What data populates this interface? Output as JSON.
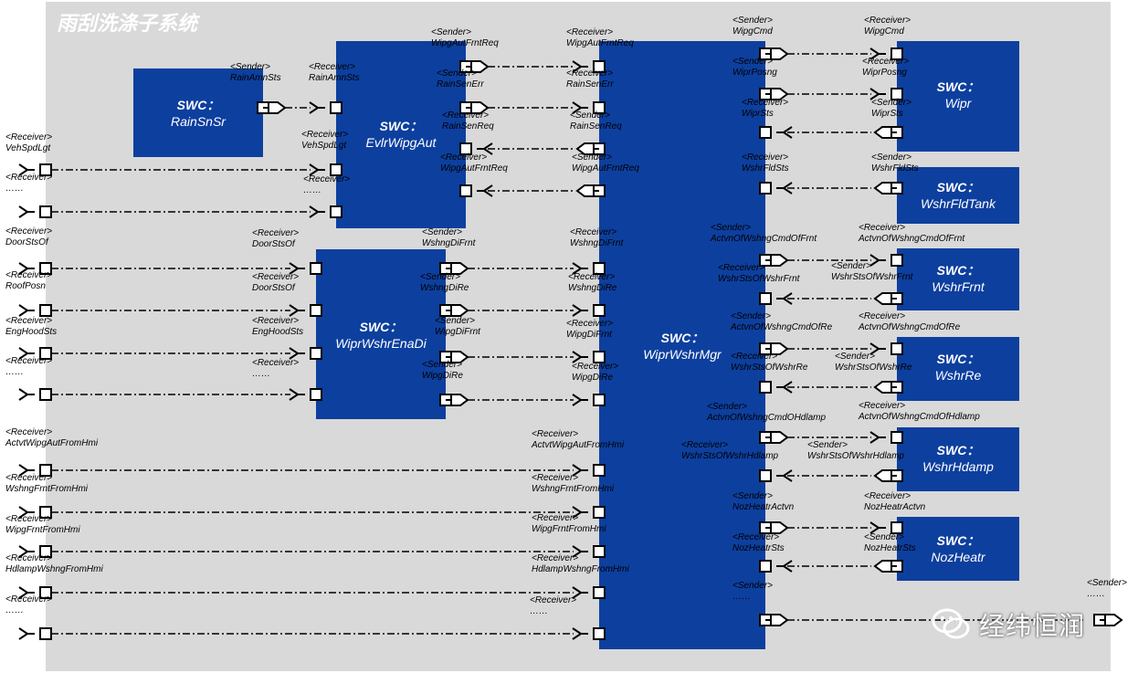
{
  "title": "雨刮洗涤子系统",
  "colors": {
    "panel": "#d9d9d9",
    "swc": "#0d3f9e",
    "line": "#000000",
    "swc_text": "#ffffff"
  },
  "watermark": {
    "icon": "wechat-icon",
    "text": "经纬恒润"
  },
  "swcs": [
    {
      "id": "rainsnsr",
      "l1": "SWC：",
      "l2": "RainSnSr"
    },
    {
      "id": "evlrwipgaut",
      "l1": "SWC：",
      "l2": "EvlrWipgAut"
    },
    {
      "id": "wiprwshrenadi",
      "l1": "SWC：",
      "l2": "WiprWshrEnaDi"
    },
    {
      "id": "wiprwshrmgr",
      "l1": "SWC：",
      "l2": "WiprWshrMgr"
    },
    {
      "id": "wipr",
      "l1": "SWC：",
      "l2": "Wipr"
    },
    {
      "id": "wshrfldtank",
      "l1": "SWC：",
      "l2": "WshrFldTank"
    },
    {
      "id": "wshrfrnt",
      "l1": "SWC：",
      "l2": "WshrFrnt"
    },
    {
      "id": "wshrre",
      "l1": "SWC：",
      "l2": "WshrRe"
    },
    {
      "id": "wshrhdamp",
      "l1": "SWC：",
      "l2": "WshrHdamp"
    },
    {
      "id": "nozheatr",
      "l1": "SWC：",
      "l2": "NozHeatr"
    }
  ],
  "ports": [
    {
      "role": "<Sender>",
      "name": "RainAmnSts"
    },
    {
      "role": "<Receiver>",
      "name": "RainAmnSts"
    },
    {
      "role": "<Sender>",
      "name": "WipgAutFrntReq"
    },
    {
      "role": "<Receiver>",
      "name": "WipgAutFrntReq"
    },
    {
      "role": "<Sender>",
      "name": "RainSenErr"
    },
    {
      "role": "<Receiver>",
      "name": "RainSenErr"
    },
    {
      "role": "<Receiver>",
      "name": "RainSenReq"
    },
    {
      "role": "<Sender>",
      "name": "RainSenReq"
    },
    {
      "role": "<Receiver>",
      "name": "WipgAutFrntReq"
    },
    {
      "role": "<Sender>",
      "name": "WipgAutFrntReq"
    },
    {
      "role": "<Receiver>",
      "name": "VehSpdLgt"
    },
    {
      "role": "<Receiver>",
      "name": "VehSpdLgt"
    },
    {
      "role": "<Receiver>",
      "name": "……"
    },
    {
      "role": "<Receiver>",
      "name": "……"
    },
    {
      "role": "<Receiver>",
      "name": "DoorStsOf"
    },
    {
      "role": "<Receiver>",
      "name": "DoorStsOf"
    },
    {
      "role": "<Receiver>",
      "name": "RoofPosn"
    },
    {
      "role": "<Receiver>",
      "name": "DoorStsOf"
    },
    {
      "role": "<Receiver>",
      "name": "EngHoodSts"
    },
    {
      "role": "<Receiver>",
      "name": "EngHoodSts"
    },
    {
      "role": "<Receiver>",
      "name": "……"
    },
    {
      "role": "<Receiver>",
      "name": "……"
    },
    {
      "role": "<Sender>",
      "name": "WshngDiFrnt"
    },
    {
      "role": "<Receiver>",
      "name": "WshngDiFrnt"
    },
    {
      "role": "<Sender>",
      "name": "WshngDiRe"
    },
    {
      "role": "<Receiver>",
      "name": "WshngDiRe"
    },
    {
      "role": "<Sender>",
      "name": "WipgDiFrnt"
    },
    {
      "role": "<Receiver>",
      "name": "WipgDiFrnt"
    },
    {
      "role": "<Sender>",
      "name": "WipgDiRe"
    },
    {
      "role": "<Receiver>",
      "name": "WipgDiRe"
    },
    {
      "role": "<Receiver>",
      "name": "ActvtWipgAutFromHmi"
    },
    {
      "role": "<Receiver>",
      "name": "ActvtWipgAutFromHmi"
    },
    {
      "role": "<Receiver>",
      "name": "WshngFrntFromHmi"
    },
    {
      "role": "<Receiver>",
      "name": "WshngFrntFromHmi"
    },
    {
      "role": "<Receiver>",
      "name": "WipgFrntFromHmi"
    },
    {
      "role": "<Receiver>",
      "name": "WipgFrntFromHmi"
    },
    {
      "role": "<Receiver>",
      "name": "HdlampWshngFromHmi"
    },
    {
      "role": "<Receiver>",
      "name": "HdlampWshngFromHmi"
    },
    {
      "role": "<Receiver>",
      "name": "……"
    },
    {
      "role": "<Receiver>",
      "name": "……"
    },
    {
      "role": "<Sender>",
      "name": "WipgCmd"
    },
    {
      "role": "<Receiver>",
      "name": "WipgCmd"
    },
    {
      "role": "<Sender>",
      "name": "WiprPosng"
    },
    {
      "role": "<Receiver>",
      "name": "WiprPosng"
    },
    {
      "role": "<Receiver>",
      "name": "WiprSts"
    },
    {
      "role": "<Sender>",
      "name": "WiprSts"
    },
    {
      "role": "<Receiver>",
      "name": "WshrFldSts"
    },
    {
      "role": "<Sender>",
      "name": "WshrFldSts"
    },
    {
      "role": "<Sender>",
      "name": "ActvnOfWshngCmdOfFrnt"
    },
    {
      "role": "<Receiver>",
      "name": "ActvnOfWshngCmdOfFrnt"
    },
    {
      "role": "<Receiver>",
      "name": "WshrStsOfWshrFrnt"
    },
    {
      "role": "<Sender>",
      "name": "WshrStsOfWshrFrnt"
    },
    {
      "role": "<Sender>",
      "name": "ActvnOfWshngCmdOfRe"
    },
    {
      "role": "<Receiver>",
      "name": "ActvnOfWshngCmdOfRe"
    },
    {
      "role": "<Receiver>",
      "name": "WshrStsOfWshrRe"
    },
    {
      "role": "<Sender>",
      "name": "WshrStsOfWshrRe"
    },
    {
      "role": "<Sender>",
      "name": "ActvnOfWshngCmdOHdlamp"
    },
    {
      "role": "<Receiver>",
      "name": "ActvnOfWshngCmdOfHdlamp"
    },
    {
      "role": "<Receiver>",
      "name": "WshrStsOfWshrHdlamp"
    },
    {
      "role": "<Sender>",
      "name": "WshrStsOfWshrHdlamp"
    },
    {
      "role": "<Sender>",
      "name": "NozHeatrActvn"
    },
    {
      "role": "<Receiver>",
      "name": "NozHeatrActvn"
    },
    {
      "role": "<Receiver>",
      "name": "NozHeatrSts"
    },
    {
      "role": "<Sender>",
      "name": "NozHeatrSts"
    },
    {
      "role": "<Sender>",
      "name": "……"
    },
    {
      "role": "<Sender>",
      "name": "……"
    }
  ]
}
